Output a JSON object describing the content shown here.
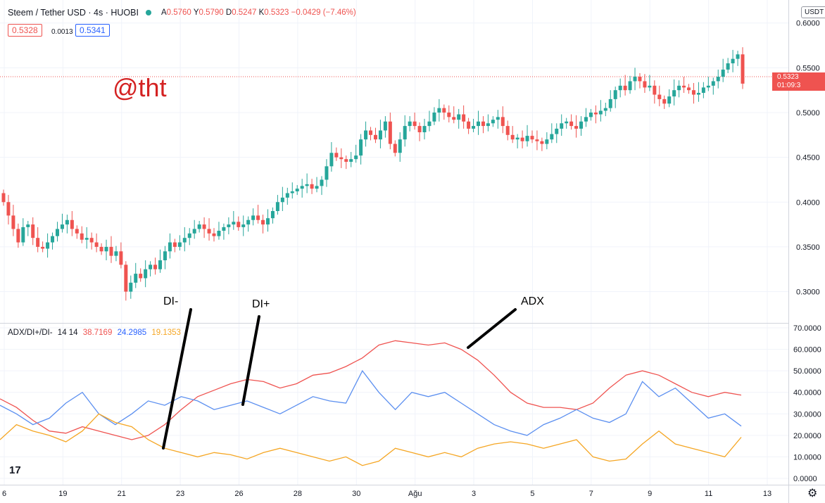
{
  "symbol": {
    "name": "Steem / Tether USD",
    "interval": "4s",
    "exchange": "HUOBI"
  },
  "ohlc": {
    "o_label": "A",
    "open": "0.5760",
    "h_label": "Y",
    "high": "0.5790",
    "l_label": "D",
    "low": "0.5247",
    "c_label": "K",
    "close": "0.5323",
    "change": "−0.0429 (−7.46%)"
  },
  "bid": "0.5328",
  "spread": "0.0013",
  "ask": "0.5341",
  "currency_button": "USDT",
  "last_price": "0.5323",
  "countdown": "01:09:3",
  "watermark": "@tht",
  "annotations": {
    "di_minus": "DI-",
    "di_plus": "DI+",
    "adx": "ADX"
  },
  "indicator": {
    "name": "ADX/DI+/DI-",
    "params": "14 14",
    "adx_value": "38.7169",
    "di_plus_value": "24.2985",
    "di_minus_value": "19.1353"
  },
  "colors": {
    "up": "#26a69a",
    "down": "#ef5350",
    "adx": "#ef5350",
    "di_plus": "#5b8ff0",
    "di_minus": "#f5a623"
  },
  "icons": {
    "logo": "tradingview-logo-icon",
    "settings": "gear-icon"
  },
  "chart_data": [
    {
      "type": "candlestick",
      "title": "Steem / Tether USD · 4s · HUOBI",
      "price_axis_ticks": [
        "0.3000",
        "0.3500",
        "0.4000",
        "0.4500",
        "0.5000",
        "0.5500",
        "0.6000"
      ],
      "ylim": [
        0.28,
        0.61
      ],
      "x_ticks": [
        "6",
        "19",
        "21",
        "23",
        "26",
        "28",
        "30",
        "Ağu",
        "3",
        "5",
        "7",
        "9",
        "11",
        "13"
      ],
      "close": [
        0.4,
        0.385,
        0.37,
        0.355,
        0.372,
        0.375,
        0.36,
        0.35,
        0.348,
        0.355,
        0.362,
        0.37,
        0.375,
        0.38,
        0.37,
        0.365,
        0.358,
        0.36,
        0.355,
        0.35,
        0.345,
        0.35,
        0.34,
        0.345,
        0.33,
        0.3,
        0.31,
        0.32,
        0.315,
        0.325,
        0.33,
        0.325,
        0.335,
        0.345,
        0.355,
        0.35,
        0.355,
        0.36,
        0.365,
        0.37,
        0.375,
        0.37,
        0.365,
        0.362,
        0.368,
        0.372,
        0.375,
        0.378,
        0.372,
        0.375,
        0.38,
        0.385,
        0.38,
        0.375,
        0.382,
        0.39,
        0.4,
        0.405,
        0.41,
        0.412,
        0.415,
        0.418,
        0.42,
        0.415,
        0.418,
        0.425,
        0.44,
        0.455,
        0.45,
        0.448,
        0.445,
        0.448,
        0.452,
        0.47,
        0.48,
        0.475,
        0.47,
        0.48,
        0.49,
        0.465,
        0.455,
        0.47,
        0.485,
        0.49,
        0.485,
        0.478,
        0.485,
        0.49,
        0.5,
        0.505,
        0.5,
        0.495,
        0.492,
        0.498,
        0.49,
        0.482,
        0.485,
        0.49,
        0.485,
        0.488,
        0.492,
        0.495,
        0.485,
        0.475,
        0.47,
        0.472,
        0.468,
        0.474,
        0.47,
        0.468,
        0.465,
        0.47,
        0.476,
        0.482,
        0.488,
        0.49,
        0.485,
        0.482,
        0.49,
        0.495,
        0.5,
        0.498,
        0.502,
        0.505,
        0.515,
        0.525,
        0.53,
        0.525,
        0.535,
        0.54,
        0.535,
        0.528,
        0.53,
        0.52,
        0.515,
        0.51,
        0.518,
        0.525,
        0.53,
        0.528,
        0.525,
        0.52,
        0.522,
        0.528,
        0.53,
        0.535,
        0.54,
        0.548,
        0.555,
        0.56,
        0.565,
        0.5323
      ],
      "timestamps_note": ""
    },
    {
      "type": "line",
      "title": "ADX/DI+/DI- 14 14",
      "y_ticks": [
        "0.0000",
        "10.0000",
        "20.0000",
        "30.0000",
        "40.0000",
        "50.0000",
        "60.0000",
        "70.0000"
      ],
      "ylim": [
        0,
        70
      ],
      "series": [
        {
          "name": "ADX",
          "values": [
            37,
            33,
            27,
            22,
            21,
            24,
            22,
            20,
            18,
            20,
            25,
            32,
            38,
            41,
            44,
            46,
            45,
            42,
            44,
            48,
            49,
            52,
            56,
            62,
            64,
            63,
            62,
            63,
            60,
            55,
            48,
            40,
            35,
            33,
            33,
            32,
            35,
            42,
            48,
            50,
            48,
            44,
            40,
            38,
            40,
            38.7169
          ]
        },
        {
          "name": "DI+",
          "values": [
            34,
            30,
            25,
            28,
            35,
            40,
            30,
            25,
            30,
            36,
            34,
            38,
            36,
            32,
            34,
            36,
            33,
            30,
            34,
            38,
            36,
            35,
            50,
            40,
            32,
            40,
            38,
            40,
            35,
            30,
            25,
            22,
            20,
            25,
            28,
            32,
            28,
            26,
            30,
            45,
            38,
            42,
            35,
            28,
            30,
            24.2985
          ]
        },
        {
          "name": "DI-",
          "values": [
            18,
            25,
            22,
            20,
            17,
            22,
            30,
            26,
            24,
            18,
            14,
            12,
            10,
            12,
            11,
            9,
            12,
            14,
            12,
            10,
            8,
            10,
            6,
            8,
            14,
            12,
            10,
            12,
            10,
            14,
            16,
            17,
            16,
            14,
            16,
            18,
            10,
            8,
            9,
            16,
            22,
            16,
            14,
            12,
            10,
            19.1353
          ]
        }
      ]
    }
  ]
}
